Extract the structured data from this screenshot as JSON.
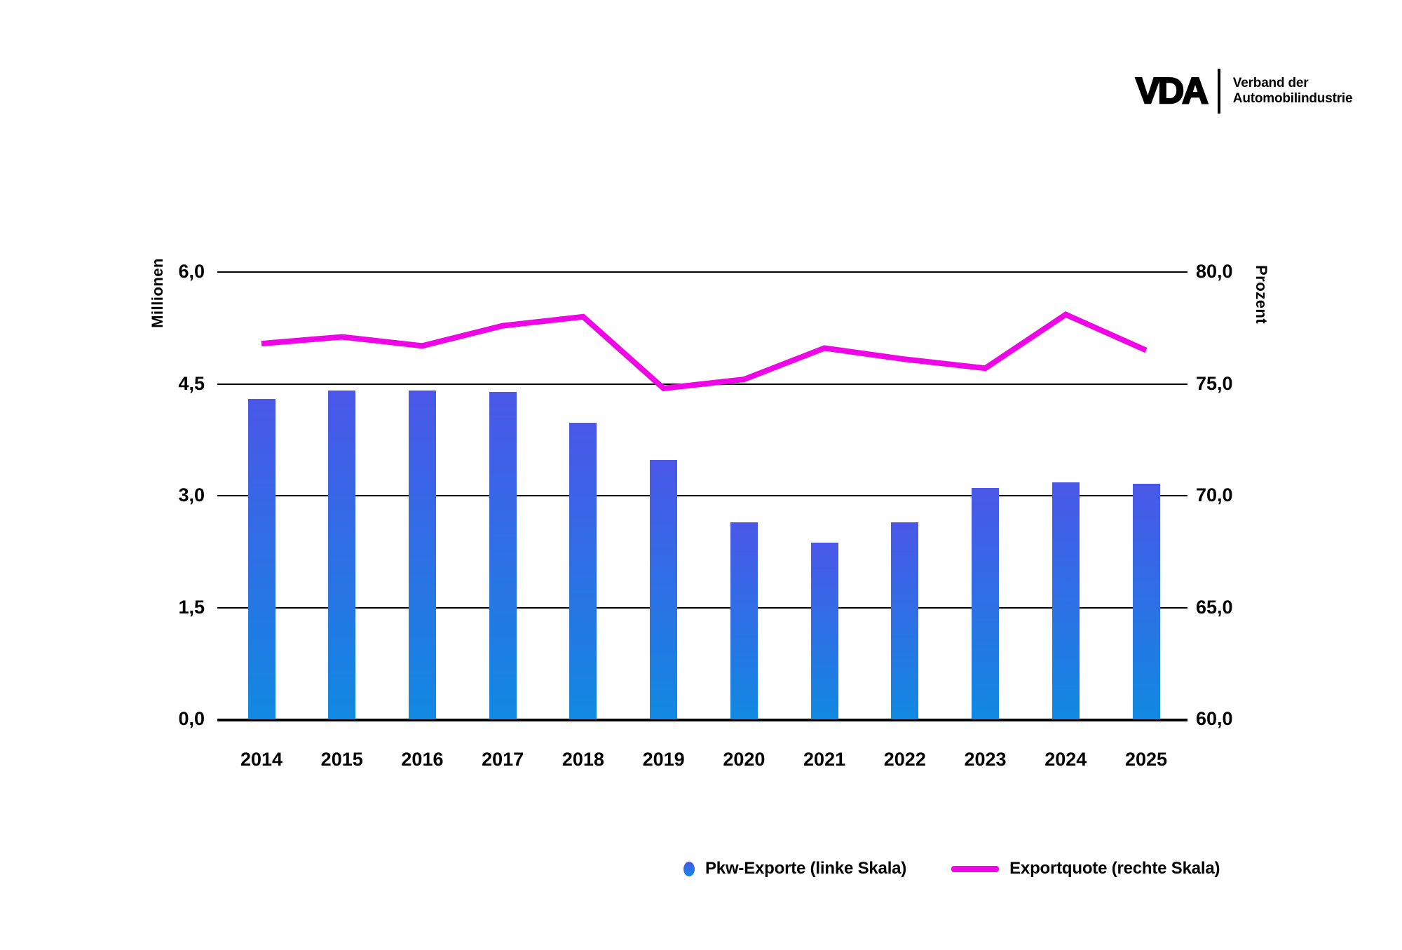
{
  "logo": {
    "brand": "VDA",
    "org_line1": "Verband der",
    "org_line2": "Automobilindustrie"
  },
  "chart_data": {
    "type": "bar",
    "categories": [
      "2014",
      "2015",
      "2016",
      "2017",
      "2018",
      "2019",
      "2020",
      "2021",
      "2022",
      "2023",
      "2024",
      "2025"
    ],
    "series": [
      {
        "name": "Pkw-Exporte (linke Skala)",
        "type": "bar",
        "axis": "left",
        "unit": "Millionen",
        "values": [
          4.3,
          4.41,
          4.41,
          4.39,
          3.98,
          3.48,
          2.64,
          2.37,
          2.64,
          3.1,
          3.18,
          3.16
        ]
      },
      {
        "name": "Exportquote (rechte Skala)",
        "type": "line",
        "axis": "right",
        "unit": "Prozent",
        "values": [
          76.8,
          77.1,
          76.7,
          77.6,
          78.0,
          74.8,
          75.2,
          76.6,
          76.1,
          75.7,
          78.1,
          76.5
        ]
      }
    ],
    "left_axis": {
      "label": "Millionen",
      "min": 0,
      "max": 6,
      "tick_labels": [
        "6,0",
        "4,5",
        "3,0",
        "1,5",
        "0,0"
      ],
      "tick_values": [
        6,
        4.5,
        3,
        1.5,
        0
      ]
    },
    "right_axis": {
      "label": "Prozent",
      "min": 60,
      "max": 80,
      "tick_labels": [
        "80,0",
        "75,0",
        "70,0",
        "65,0",
        "60,0"
      ],
      "tick_values": [
        80,
        75,
        70,
        65,
        60
      ]
    },
    "grid": true,
    "legend_position": "bottom",
    "title": ""
  },
  "legend": {
    "items": [
      {
        "label": "Pkw-Exporte (linke Skala)",
        "marker": "dot"
      },
      {
        "label": "Exportquote (rechte Skala)",
        "marker": "line"
      }
    ]
  },
  "colors": {
    "bar_top": "#4A57E8",
    "bar_bottom": "#1189E2",
    "line": "#EE06E6",
    "axis": "#000000"
  }
}
